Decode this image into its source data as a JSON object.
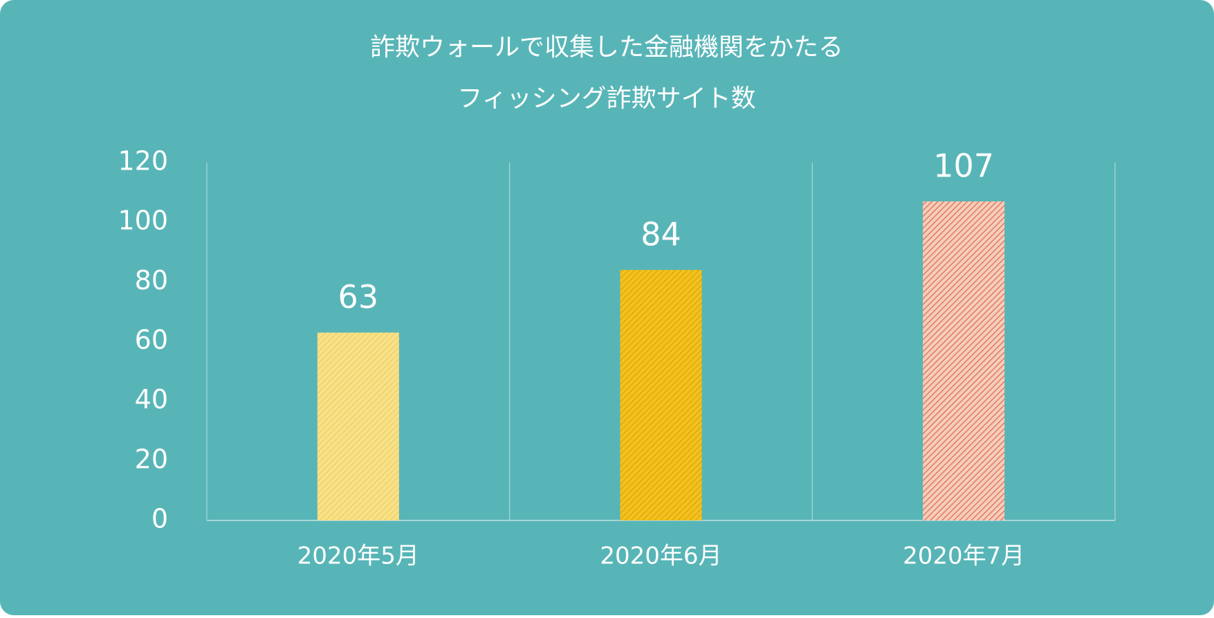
{
  "chart_data": {
    "type": "bar",
    "title": [
      "詐欺ウォールで収集した金融機関をかたる",
      "フィッシング詐欺サイト数"
    ],
    "categories": [
      "2020年5月",
      "2020年6月",
      "2020年7月"
    ],
    "values": [
      63,
      84,
      107
    ],
    "colors": [
      "#f7e18c",
      "#f3c21c",
      "#f5cdbb"
    ],
    "hatch_colors": [
      "#efcf55",
      "#dca30f",
      "#de6a4e"
    ],
    "ylim": [
      0,
      120
    ],
    "yticks": [
      0,
      20,
      40,
      60,
      80,
      100,
      120
    ],
    "grid": false,
    "category_separators": true
  }
}
